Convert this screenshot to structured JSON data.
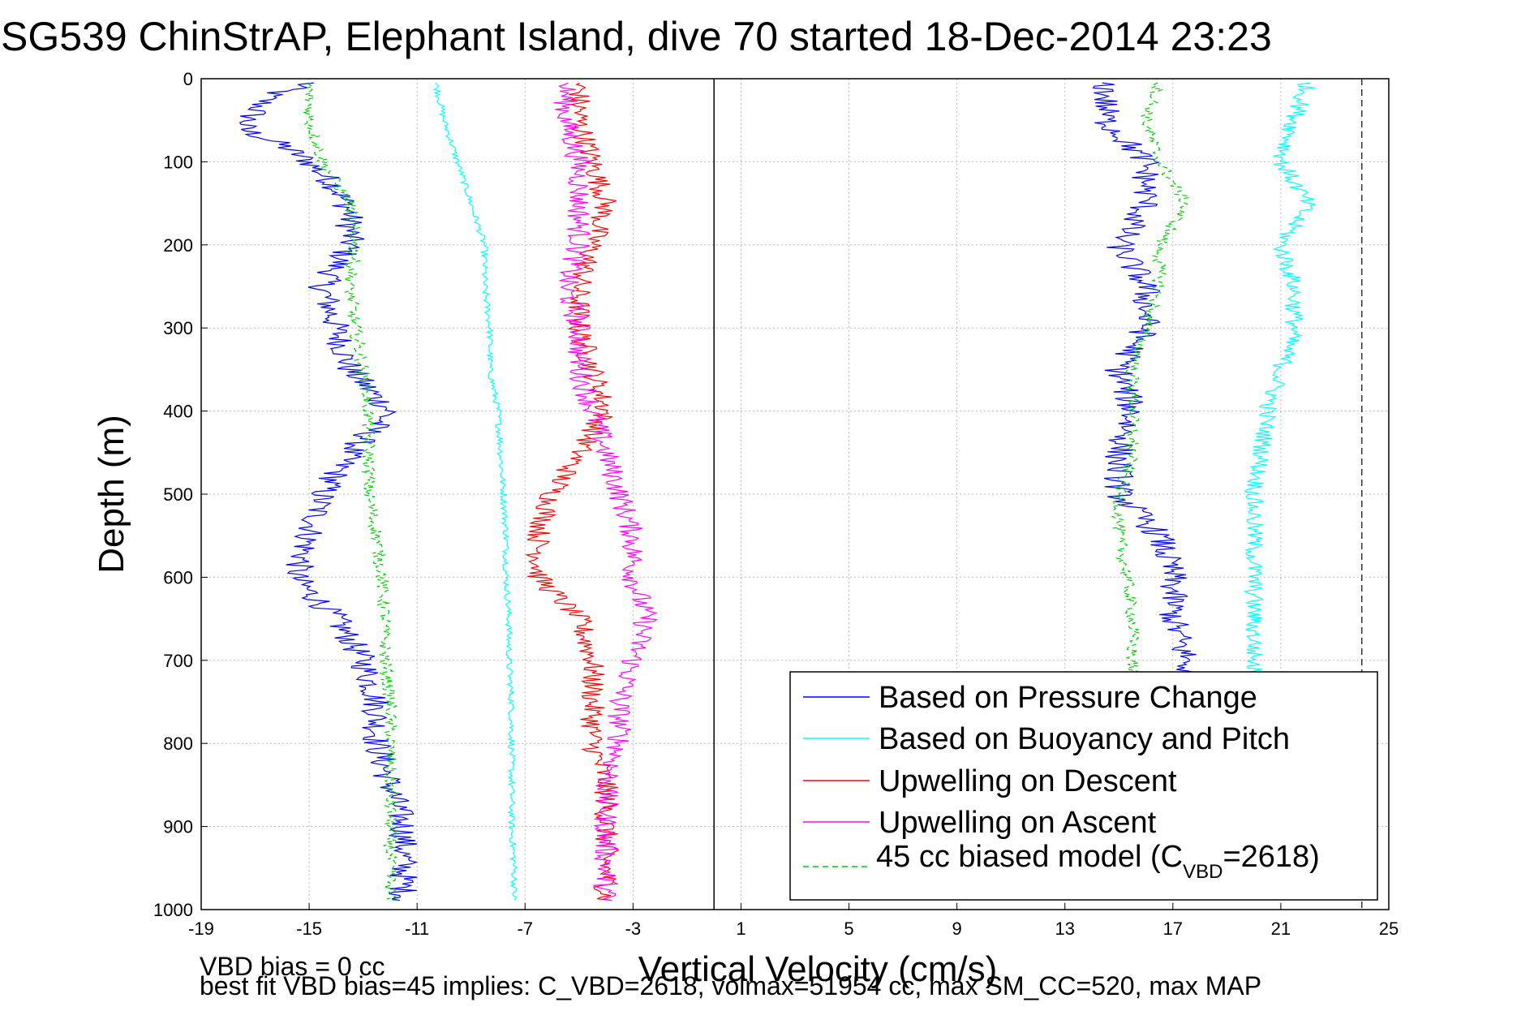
{
  "chart_data": {
    "type": "line",
    "title": "SG539 ChinStrAP, Elephant Island, dive 70 started 18-Dec-2014 23:23",
    "xlabel": "Vertical Velocity (cm/s)",
    "ylabel": "Depth (m)",
    "xlim": [
      -19,
      25
    ],
    "ylim": [
      0,
      1000
    ],
    "y_reversed": true,
    "grid": true,
    "x_ticks": [
      "-19",
      "-15",
      "-11",
      "-7",
      "-3",
      "1",
      "5",
      "9",
      "13",
      "17",
      "21",
      "25"
    ],
    "y_ticks": [
      "0",
      "100",
      "200",
      "300",
      "400",
      "500",
      "600",
      "700",
      "800",
      "900",
      "1000"
    ],
    "legend_position": "bottom-right",
    "reference_lines": {
      "x_solid": 0,
      "x_dashed": 24
    },
    "legend": {
      "pressure": "Based on Pressure Change",
      "buoyancy": "Based on Buoyancy and Pitch",
      "up_descent": "Upwelling on Descent",
      "up_ascent": "Upwelling on Ascent",
      "model_pre": "45 cc biased model (C",
      "model_sub": "VBD",
      "model_post": "=2618)"
    },
    "series": [
      {
        "key": "pressure",
        "name": "Based on Pressure Change",
        "color": "#0000ff",
        "style": "solid",
        "jitter": 0.55,
        "depth": [
          5,
          20,
          60,
          80,
          100,
          130,
          160,
          200,
          250,
          300,
          350,
          400,
          450,
          500,
          550,
          600,
          650,
          700,
          750,
          800,
          850,
          900,
          950,
          990
        ],
        "values": [
          -15,
          -16.5,
          -17.5,
          -16,
          -15,
          -14,
          -13.5,
          -13.5,
          -14.5,
          -14,
          -13.5,
          -12,
          -13.5,
          -14.5,
          -15,
          -15.5,
          -14,
          -13,
          -12.5,
          -12.5,
          -12,
          -11.5,
          -11.5,
          -11.5
        ]
      },
      {
        "key": "buoyancy",
        "name": "Based on Buoyancy and Pitch",
        "color": "#00ffff",
        "style": "solid",
        "jitter": 0.12,
        "depth": [
          5,
          50,
          100,
          150,
          200,
          250,
          300,
          350,
          400,
          450,
          500,
          550,
          600,
          650,
          700,
          750,
          800,
          850,
          900,
          950,
          990
        ],
        "values": [
          -10.3,
          -10,
          -9.5,
          -9,
          -8.5,
          -8.5,
          -8.3,
          -8.3,
          -8,
          -7.9,
          -7.8,
          -7.7,
          -7.7,
          -7.6,
          -7.6,
          -7.5,
          -7.5,
          -7.5,
          -7.5,
          -7.4,
          -7.4
        ]
      },
      {
        "key": "up_descent",
        "name": "Upwelling on Descent",
        "color": "#ff0000",
        "style": "solid",
        "jitter": 0.45,
        "depth": [
          5,
          50,
          100,
          150,
          200,
          250,
          300,
          350,
          400,
          450,
          500,
          550,
          600,
          650,
          700,
          750,
          800,
          850,
          900,
          950,
          990
        ],
        "values": [
          -5,
          -5,
          -4.5,
          -4,
          -4.5,
          -5,
          -5,
          -4.5,
          -4,
          -5,
          -6,
          -6.5,
          -6.5,
          -5,
          -4.5,
          -4.5,
          -4.5,
          -4,
          -4,
          -4,
          -4
        ]
      },
      {
        "key": "up_ascent",
        "name": "Upwelling on Ascent",
        "color": "#ff00ff",
        "style": "solid",
        "jitter": 0.45,
        "depth": [
          5,
          50,
          100,
          150,
          200,
          250,
          300,
          350,
          400,
          450,
          500,
          550,
          600,
          650,
          700,
          750,
          800,
          850,
          900,
          950,
          990
        ],
        "values": [
          -5.5,
          -5.5,
          -5,
          -5,
          -5,
          -5.5,
          -5,
          -5,
          -4.5,
          -4,
          -3.5,
          -3,
          -3,
          -2.5,
          -3,
          -3.5,
          -3.5,
          -4,
          -4,
          -4,
          -4
        ]
      },
      {
        "key": "model",
        "name": "45 cc biased model (CVBD=2618)",
        "color": "#00cc00",
        "style": "dashed",
        "jitter": 0.25,
        "depth": [
          5,
          50,
          100,
          150,
          200,
          250,
          300,
          350,
          400,
          450,
          500,
          550,
          600,
          650,
          700,
          750,
          800,
          850,
          900,
          950,
          990
        ],
        "values": [
          -15,
          -15,
          -14.5,
          -13.5,
          -13.3,
          -13.5,
          -13.3,
          -13,
          -12.8,
          -12.8,
          -12.8,
          -12.5,
          -12.3,
          -12.2,
          -12.2,
          -12,
          -12,
          -12,
          -12,
          -12,
          -12
        ]
      },
      {
        "key": "pressure",
        "name": "Based on Pressure Change",
        "color": "#0000ff",
        "style": "solid",
        "jitter": 0.55,
        "ascent": true,
        "depth": [
          5,
          50,
          100,
          150,
          200,
          250,
          300,
          350,
          400,
          450,
          500,
          550,
          600,
          650,
          700,
          720
        ],
        "values": [
          14.5,
          14.5,
          16,
          16,
          15,
          16,
          16,
          15,
          15.5,
          15,
          15,
          16.5,
          17,
          17,
          17.5,
          17.5
        ]
      },
      {
        "key": "buoyancy",
        "name": "Based on Buoyancy and Pitch",
        "color": "#00ffff",
        "style": "solid",
        "jitter": 0.35,
        "ascent": true,
        "depth": [
          5,
          50,
          100,
          150,
          200,
          250,
          300,
          350,
          400,
          450,
          500,
          550,
          600,
          650,
          700,
          720
        ],
        "values": [
          22,
          21.5,
          21,
          22,
          21,
          21.5,
          21.5,
          21,
          20.5,
          20.3,
          20,
          20,
          20,
          20,
          20,
          20
        ]
      },
      {
        "key": "model",
        "name": "45 cc biased model (CVBD=2618)",
        "color": "#00cc00",
        "style": "dashed",
        "jitter": 0.25,
        "ascent": true,
        "depth": [
          5,
          50,
          100,
          150,
          200,
          250,
          300,
          350,
          400,
          450,
          500,
          550,
          600,
          650,
          700,
          720
        ],
        "values": [
          16.5,
          16,
          16.5,
          17.5,
          16.5,
          16.5,
          16,
          15.5,
          15.5,
          15.5,
          15,
          15,
          15.3,
          15.5,
          15.5,
          15.5
        ]
      }
    ]
  },
  "footer": {
    "line1": "VBD bias = 0 cc",
    "line2": "best fit VBD bias=45 implies: C_VBD=2618, volmax=51954 cc, max SM_CC=520, max MAP"
  }
}
